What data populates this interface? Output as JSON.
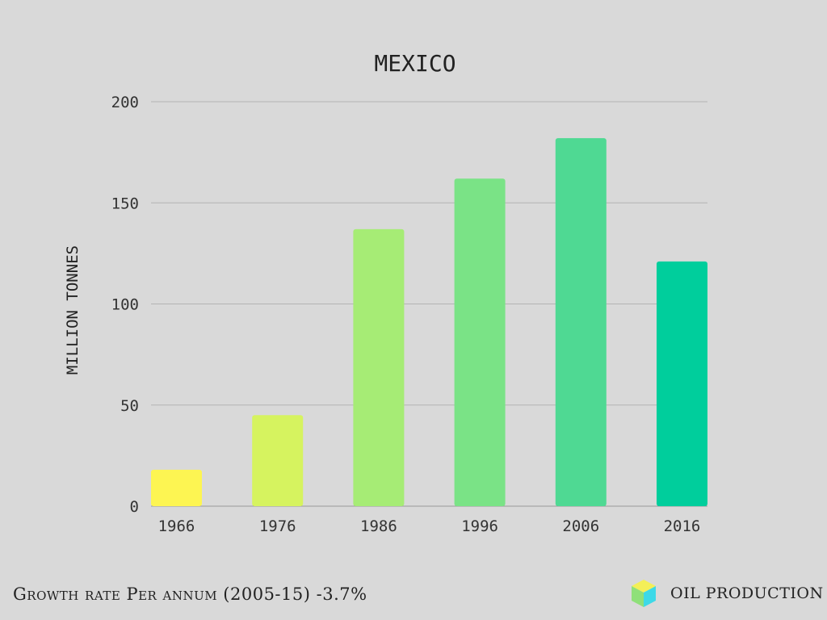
{
  "chart_data": {
    "type": "bar",
    "title": "MEXICO",
    "xlabel": "",
    "ylabel": "MILLION TONNES",
    "categories": [
      "1966",
      "1976",
      "1986",
      "1996",
      "2006",
      "2016"
    ],
    "values": [
      18,
      45,
      137,
      162,
      182,
      121
    ],
    "colors": [
      "#fdf552",
      "#d6f35f",
      "#a6ec75",
      "#7ae386",
      "#4fd993",
      "#00ce9c"
    ],
    "ylim": [
      0,
      200
    ],
    "yticks": [
      "0",
      "50",
      "100",
      "150",
      "200"
    ],
    "grid": true,
    "gridColor": "#b3b3b3"
  },
  "footer": {
    "growth_text": "Growth rate Per annum (2005-15) -3.7%",
    "category_label": "OIL PRODUCTION",
    "cube_colors": {
      "top": "#f4ef57",
      "left": "#8fe07a",
      "right": "#3dd9e8"
    }
  }
}
